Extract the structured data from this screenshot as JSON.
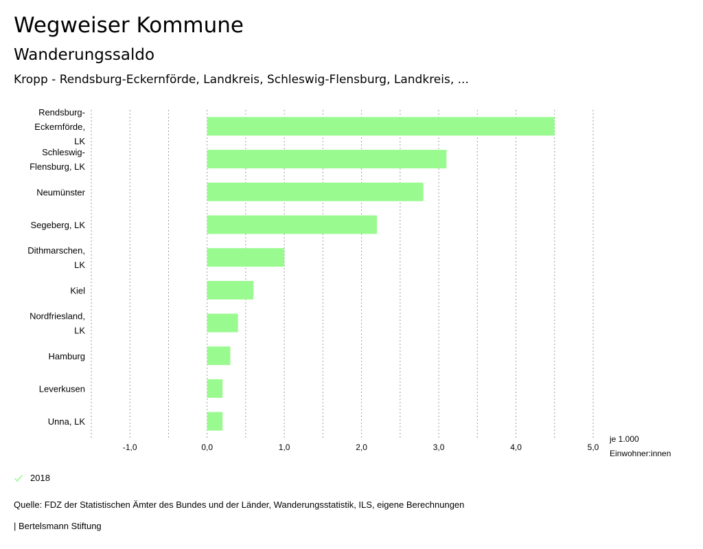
{
  "header": {
    "title": "Wegweiser Kommune",
    "subtitle": "Wanderungssaldo",
    "region": "Kropp - Rendsburg-Eckernförde, Landkreis, Schleswig-Flensburg, Landkreis, ..."
  },
  "chart_data": {
    "type": "bar",
    "orientation": "horizontal",
    "title": "Wanderungssaldo",
    "categories": [
      [
        "Rendsburg-",
        "Eckernförde,",
        "LK"
      ],
      [
        "Schleswig-",
        "Flensburg, LK"
      ],
      [
        "Neumünster"
      ],
      [
        "Segeberg, LK"
      ],
      [
        "Dithmarschen,",
        "LK"
      ],
      [
        "Kiel"
      ],
      [
        "Nordfriesland,",
        "LK"
      ],
      [
        "Hamburg"
      ],
      [
        "Leverkusen"
      ],
      [
        "Unna, LK"
      ]
    ],
    "series": [
      {
        "name": "2018",
        "color": "#99fa8f",
        "values": [
          4.5,
          3.1,
          2.8,
          2.2,
          1.0,
          0.6,
          0.4,
          0.3,
          0.2,
          0.2
        ]
      }
    ],
    "xlim": [
      -1.5,
      5.0
    ],
    "ticks": [
      -1.0,
      0.0,
      1.0,
      2.0,
      3.0,
      4.0,
      5.0
    ],
    "tick_labels": [
      "-1,0",
      "0,0",
      "1,0",
      "2,0",
      "3,0",
      "4,0",
      "5,0"
    ],
    "gridlines": [
      -1.5,
      -1.0,
      -0.5,
      0.0,
      0.5,
      1.0,
      1.5,
      2.0,
      2.5,
      3.0,
      3.5,
      4.0,
      4.5,
      5.0
    ],
    "unit_label": [
      "je 1.000",
      "Einwohner:innen"
    ],
    "xlabel": "",
    "ylabel": "",
    "grid": true
  },
  "legend": {
    "label": "2018",
    "color": "#99fa8f"
  },
  "source": "Quelle: FDZ der Statistischen Ämter des Bundes und der Länder, Wanderungsstatistik, ILS, eigene Berechnungen",
  "footer": "| Bertelsmann Stiftung"
}
